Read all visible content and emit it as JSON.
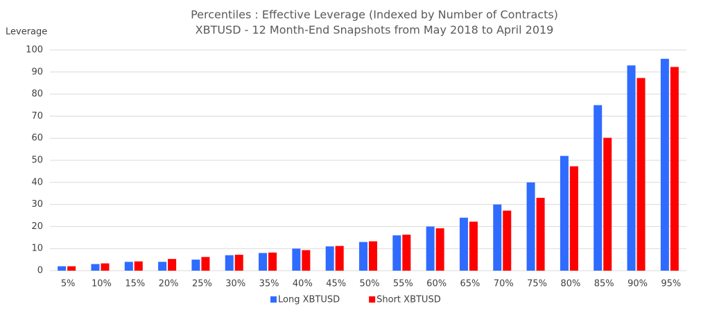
{
  "chart_data": {
    "type": "bar",
    "title": "Percentiles : Effective Leverage (Indexed by Number of Contracts)",
    "subtitle": "XBTUSD - 12 Month-End Snapshots from May 2018 to April 2019",
    "y_label": "Leverage",
    "categories": [
      "5%",
      "10%",
      "15%",
      "20%",
      "25%",
      "30%",
      "35%",
      "40%",
      "45%",
      "50%",
      "55%",
      "60%",
      "65%",
      "70%",
      "75%",
      "80%",
      "85%",
      "90%",
      "95%"
    ],
    "series": [
      {
        "name": "Long XBTUSD",
        "color": "#2f6bff",
        "values": [
          2,
          3,
          4,
          4,
          5,
          7,
          8,
          10,
          11,
          13,
          16,
          20,
          24,
          30,
          40,
          52,
          75,
          93,
          96
        ]
      },
      {
        "name": "Short XBTUSD",
        "color": "#ff0000",
        "values": [
          2,
          3.3,
          4.2,
          5.3,
          6.2,
          7.2,
          8.2,
          9.3,
          11.2,
          13.3,
          16.3,
          19.2,
          22.2,
          27.2,
          33,
          47.3,
          60.2,
          87.3,
          92.3
        ]
      }
    ],
    "ylim": [
      0,
      100
    ],
    "yticks": [
      0,
      10,
      20,
      30,
      40,
      50,
      60,
      70,
      80,
      90,
      100
    ],
    "grid": true,
    "legend": "bottom"
  }
}
